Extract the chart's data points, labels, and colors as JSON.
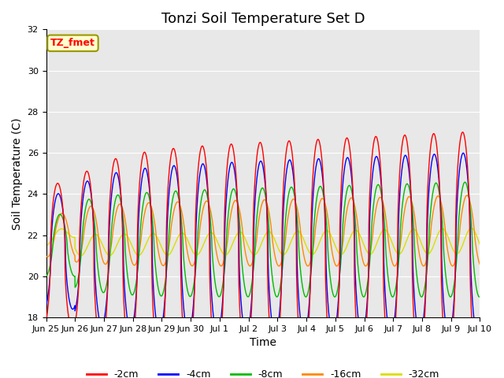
{
  "title": "Tonzi Soil Temperature Set D",
  "xlabel": "Time",
  "ylabel": "Soil Temperature (C)",
  "ylim": [
    18,
    32
  ],
  "xlim": [
    0,
    15
  ],
  "line_colors": {
    "-2cm": "#FF0000",
    "-4cm": "#0000FF",
    "-8cm": "#00BB00",
    "-16cm": "#FF8800",
    "-32cm": "#DDDD00"
  },
  "legend_labels": [
    "-2cm",
    "-4cm",
    "-8cm",
    "-16cm",
    "-32cm"
  ],
  "annotation_text": "TZ_fmet",
  "annotation_bg": "#FFFFCC",
  "annotation_border": "#999900",
  "tick_labels": [
    "Jun 25",
    "Jun 26",
    "Jun 27",
    "Jun 28",
    "Jun 29",
    "Jun 30",
    "Jul 1",
    "Jul 2",
    "Jul 3",
    "Jul 4",
    "Jul 5",
    "Jul 6",
    "Jul 7",
    "Jul 8",
    "Jul 9",
    "Jul 10"
  ],
  "plot_bg": "#E8E8E8",
  "fig_bg": "#FFFFFF",
  "grid_color": "#FFFFFF",
  "title_fontsize": 13,
  "axis_fontsize": 10,
  "tick_fontsize": 8
}
